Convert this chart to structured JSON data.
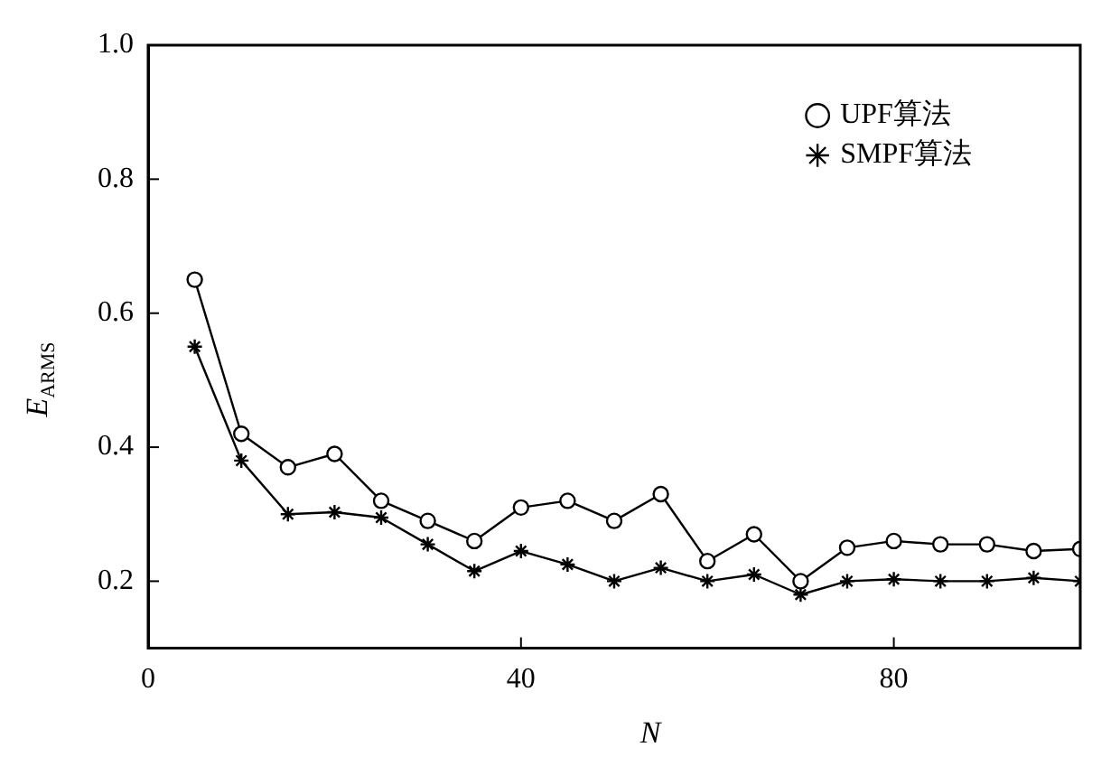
{
  "chart_data": {
    "type": "line",
    "xlabel": "N",
    "ylabel": "E$_{ARMS}$",
    "x": [
      5,
      10,
      15,
      20,
      25,
      30,
      35,
      40,
      45,
      50,
      55,
      60,
      65,
      70,
      75,
      80,
      85,
      90,
      95,
      100
    ],
    "series": [
      {
        "name": "UPF算法",
        "color": "#000000",
        "marker": "circle",
        "values": [
          0.65,
          0.42,
          0.37,
          0.39,
          0.32,
          0.29,
          0.26,
          0.31,
          0.32,
          0.29,
          0.33,
          0.23,
          0.27,
          0.2,
          0.25,
          0.26,
          0.255,
          0.255,
          0.245,
          0.248
        ]
      },
      {
        "name": "SMPF算法",
        "color": "#000000",
        "marker": "cross",
        "values": [
          0.55,
          0.38,
          0.3,
          0.303,
          0.295,
          0.255,
          0.215,
          0.245,
          0.225,
          0.2,
          0.22,
          0.2,
          0.21,
          0.18,
          0.2,
          0.203,
          0.2,
          0.2,
          0.205,
          0.2
        ]
      }
    ],
    "xlim": [
      0,
      100
    ],
    "xticks": [
      0,
      40,
      80
    ],
    "ylim": [
      0.1,
      1
    ],
    "yticks": [
      0.2,
      0.4,
      0.6,
      0.8,
      {
        "value": 1,
        "label": "1.0"
      }
    ],
    "grid": false,
    "legend": "top right",
    "line_style": "solid"
  }
}
